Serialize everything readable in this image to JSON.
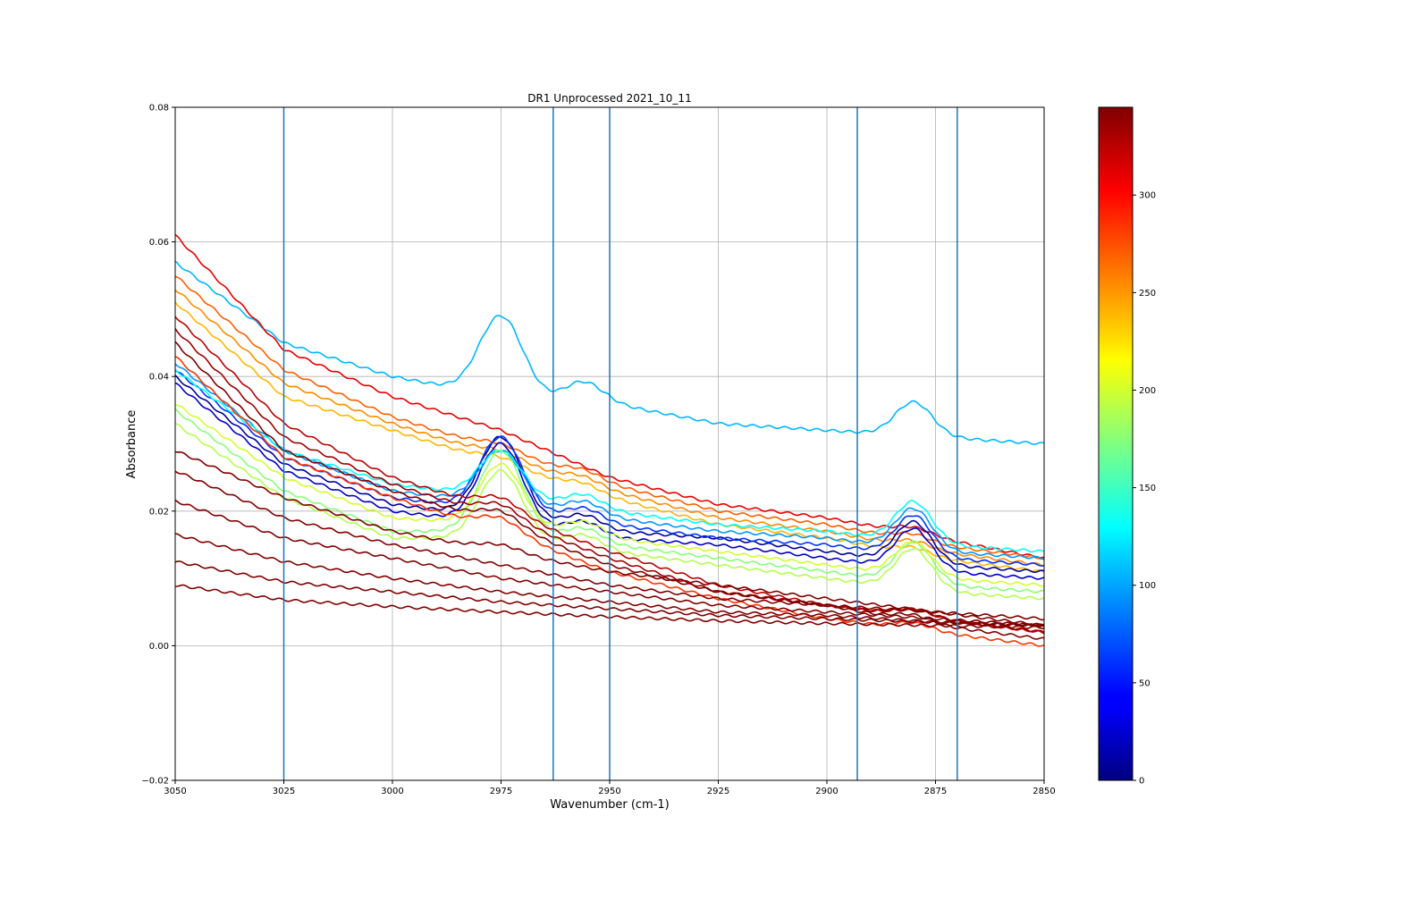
{
  "chart_data": {
    "type": "line",
    "title": "DR1 Unprocessed 2021_10_11",
    "xlabel": "Wavenumber (cm-1)",
    "ylabel": "Absorbance",
    "xlim": [
      3050,
      2850
    ],
    "x_inverted": true,
    "ylim": [
      -0.02,
      0.08
    ],
    "x_ticks": [
      3050,
      3025,
      3000,
      2975,
      2950,
      2925,
      2900,
      2875,
      2850
    ],
    "x_tick_labels": [
      "3050",
      "3025",
      "3000",
      "2975",
      "2950",
      "2925",
      "2900",
      "2875",
      "2850"
    ],
    "y_ticks": [
      -0.02,
      0.0,
      0.02,
      0.04,
      0.06,
      0.08
    ],
    "y_tick_labels": [
      "−0.02",
      "0.00",
      "0.02",
      "0.04",
      "0.06",
      "0.08"
    ],
    "grid": true,
    "vertical_lines": [
      3025,
      2963,
      2950,
      2893,
      2870
    ],
    "vertical_line_color": "#1f77b4",
    "colormap": "jet",
    "colorbar": {
      "range": [
        0,
        345
      ],
      "ticks": [
        0,
        50,
        100,
        150,
        200,
        250,
        300
      ],
      "tick_labels": [
        "0",
        "50",
        "100",
        "150",
        "200",
        "250",
        "300"
      ]
    },
    "peak_positions": [
      2975,
      2956,
      2880
    ],
    "series": [
      {
        "c": 105,
        "base": [
          0.057,
          0.045,
          0.04,
          0.037,
          0.036,
          0.033,
          0.032,
          0.031,
          0.03
        ],
        "peaks": [
          0.012,
          0.003,
          0.005
        ]
      },
      {
        "c": 310,
        "base": [
          0.061,
          0.044,
          0.037,
          0.032,
          0.025,
          0.021,
          0.019,
          0.016,
          0.013
        ],
        "peaks": [
          0.0,
          0.0,
          0.001
        ]
      },
      {
        "c": 270,
        "base": [
          0.055,
          0.041,
          0.034,
          0.029,
          0.024,
          0.02,
          0.018,
          0.015,
          0.013
        ],
        "peaks": [
          0.001,
          0.001,
          0.001
        ]
      },
      {
        "c": 255,
        "base": [
          0.053,
          0.039,
          0.033,
          0.028,
          0.023,
          0.019,
          0.017,
          0.014,
          0.012
        ],
        "peaks": [
          0.001,
          0.001,
          0.001
        ]
      },
      {
        "c": 240,
        "base": [
          0.051,
          0.037,
          0.032,
          0.027,
          0.022,
          0.018,
          0.016,
          0.013,
          0.011
        ],
        "peaks": [
          0.001,
          0.001,
          0.001
        ]
      },
      {
        "c": 10,
        "base": [
          0.04,
          0.027,
          0.021,
          0.019,
          0.017,
          0.016,
          0.014,
          0.012,
          0.011
        ],
        "peaks": [
          0.012,
          0.002,
          0.006
        ]
      },
      {
        "c": 25,
        "base": [
          0.039,
          0.026,
          0.02,
          0.018,
          0.016,
          0.015,
          0.013,
          0.011,
          0.01
        ],
        "peaks": [
          0.012,
          0.002,
          0.006
        ]
      },
      {
        "c": 60,
        "base": [
          0.041,
          0.028,
          0.022,
          0.02,
          0.018,
          0.016,
          0.015,
          0.013,
          0.012
        ],
        "peaks": [
          0.011,
          0.002,
          0.006
        ]
      },
      {
        "c": 95,
        "base": [
          0.042,
          0.029,
          0.023,
          0.021,
          0.019,
          0.017,
          0.016,
          0.014,
          0.013
        ],
        "peaks": [
          0.008,
          0.002,
          0.006
        ]
      },
      {
        "c": 130,
        "base": [
          0.041,
          0.029,
          0.024,
          0.022,
          0.02,
          0.018,
          0.017,
          0.015,
          0.014
        ],
        "peaks": [
          0.007,
          0.002,
          0.006
        ]
      },
      {
        "c": 175,
        "base": [
          0.035,
          0.023,
          0.017,
          0.017,
          0.015,
          0.013,
          0.011,
          0.009,
          0.008
        ],
        "peaks": [
          0.012,
          0.002,
          0.006
        ]
      },
      {
        "c": 190,
        "base": [
          0.033,
          0.022,
          0.016,
          0.016,
          0.014,
          0.012,
          0.01,
          0.008,
          0.007
        ],
        "peaks": [
          0.01,
          0.002,
          0.006
        ]
      },
      {
        "c": 200,
        "base": [
          0.036,
          0.025,
          0.019,
          0.018,
          0.016,
          0.014,
          0.012,
          0.01,
          0.009
        ],
        "peaks": [
          0.009,
          0.002,
          0.005
        ]
      },
      {
        "c": 325,
        "base": [
          0.049,
          0.033,
          0.025,
          0.02,
          0.014,
          0.009,
          0.006,
          0.004,
          0.002
        ],
        "peaks": [
          0.002,
          0.0,
          0.001
        ]
      },
      {
        "c": 335,
        "base": [
          0.047,
          0.031,
          0.024,
          0.019,
          0.013,
          0.008,
          0.006,
          0.004,
          0.002
        ],
        "peaks": [
          0.002,
          0.0,
          0.001
        ]
      },
      {
        "c": 345,
        "base": [
          0.045,
          0.029,
          0.023,
          0.018,
          0.012,
          0.008,
          0.006,
          0.003,
          0.001
        ],
        "peaks": [
          0.002,
          0.0,
          0.001
        ]
      },
      {
        "c": 285,
        "base": [
          0.043,
          0.028,
          0.022,
          0.017,
          0.011,
          0.007,
          0.004,
          0.002,
          0.0
        ],
        "peaks": [
          0.002,
          0.0,
          0.001
        ]
      },
      {
        "c": 345,
        "base": [
          0.029,
          0.022,
          0.017,
          0.014,
          0.011,
          0.009,
          0.007,
          0.005,
          0.004
        ],
        "peaks": [
          0.001,
          0.0,
          0.0
        ]
      },
      {
        "c": 345,
        "base": [
          0.026,
          0.019,
          0.015,
          0.012,
          0.009,
          0.007,
          0.006,
          0.005,
          0.003
        ],
        "peaks": [
          0.0,
          0.0,
          0.0
        ]
      },
      {
        "c": 345,
        "base": [
          0.0215,
          0.016,
          0.013,
          0.01,
          0.008,
          0.006,
          0.005,
          0.004,
          0.003
        ],
        "peaks": [
          0.0,
          0.0,
          0.0
        ]
      },
      {
        "c": 345,
        "base": [
          0.0165,
          0.0125,
          0.01,
          0.008,
          0.0065,
          0.005,
          0.0045,
          0.0035,
          0.003
        ],
        "peaks": [
          0.0,
          0.0,
          0.0
        ]
      },
      {
        "c": 345,
        "base": [
          0.0125,
          0.0095,
          0.008,
          0.0065,
          0.0055,
          0.0045,
          0.004,
          0.0035,
          0.003
        ],
        "peaks": [
          0.0,
          0.0,
          0.0
        ]
      },
      {
        "c": 345,
        "base": [
          0.009,
          0.0068,
          0.0058,
          0.005,
          0.0043,
          0.0037,
          0.0033,
          0.003,
          0.0027
        ],
        "peaks": [
          0.0,
          0.0,
          0.0
        ]
      }
    ]
  }
}
